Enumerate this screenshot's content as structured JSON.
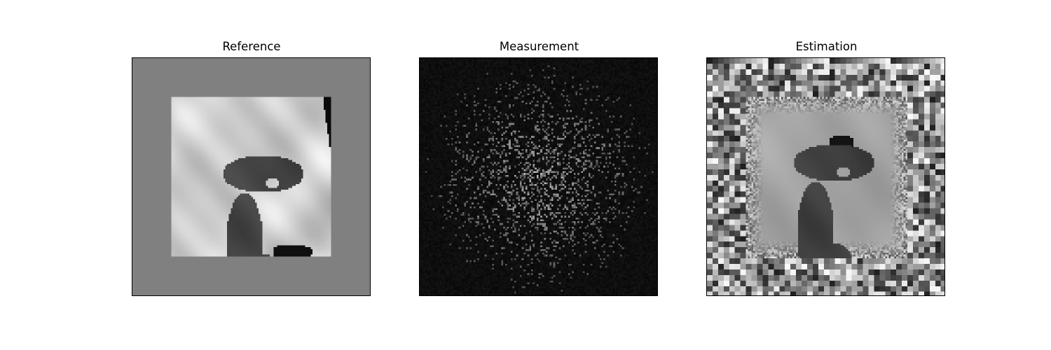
{
  "panels": [
    {
      "title": "Reference"
    },
    {
      "title": "Measurement"
    },
    {
      "title": "Estimation"
    }
  ]
}
